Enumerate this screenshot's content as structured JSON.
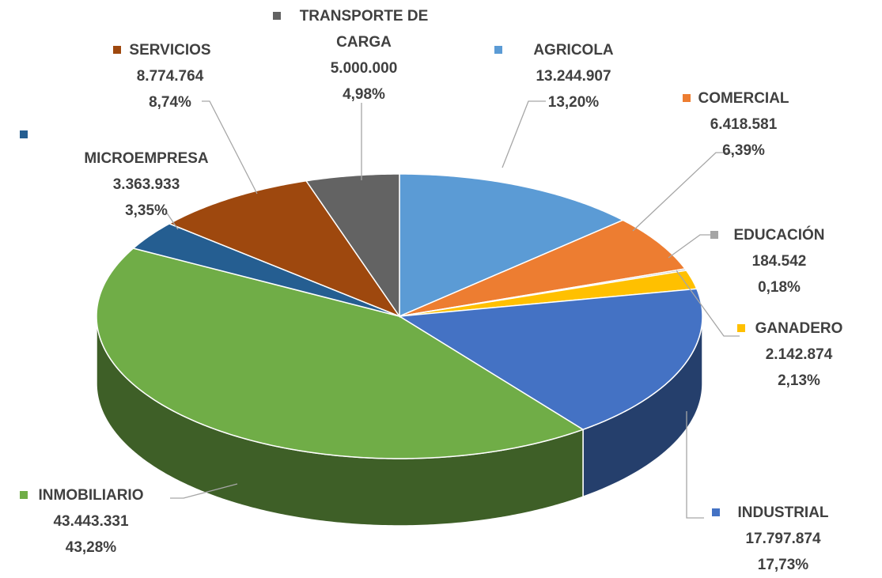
{
  "chart_data": {
    "type": "pie",
    "categories": [
      "AGRICOLA",
      "COMERCIAL",
      "EDUCACIÓN",
      "GANADERO",
      "INDUSTRIAL",
      "INMOBILIARIO",
      "MICROEMPRESA",
      "SERVICIOS",
      "TRANSPORTE DE CARGA"
    ],
    "values": [
      13244907,
      6418581,
      184542,
      2142874,
      17797874,
      43443331,
      3363933,
      8774764,
      5000000
    ],
    "value_labels": [
      "13.244.907",
      "6.418.581",
      "184.542",
      "2.142.874",
      "17.797.874",
      "43.443.331",
      "3.363.933",
      "8.774.764",
      "5.000.000"
    ],
    "percents": [
      13.2,
      6.39,
      0.18,
      2.13,
      17.73,
      43.28,
      3.35,
      8.74,
      4.98
    ],
    "percent_labels": [
      "13,20%",
      "6,39%",
      "0,18%",
      "2,13%",
      "17,73%",
      "43,28%",
      "3,35%",
      "8,74%",
      "4,98%"
    ],
    "colors": [
      "#5b9bd5",
      "#ed7d31",
      "#a5a5a5",
      "#ffc000",
      "#4472c4",
      "#70ad47",
      "#255e91",
      "#9e480e",
      "#636363"
    ],
    "three_d": true
  }
}
